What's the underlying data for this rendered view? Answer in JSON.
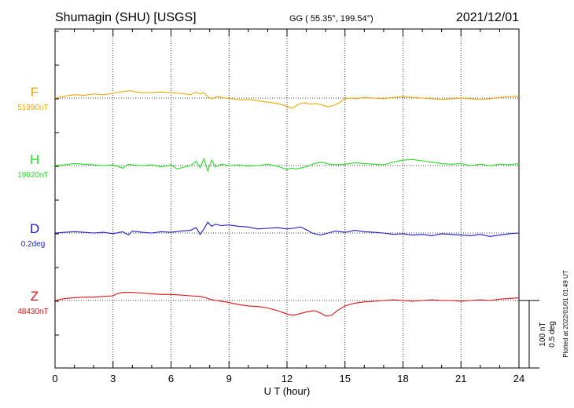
{
  "header": {
    "station": "Shumagin (SHU)  [USGS]",
    "coords": "GG ( 55.35°, 199.54°)",
    "date": "2021/12/01"
  },
  "side_note": "Plotted at 2022/01/01 01:49 UT",
  "scale": {
    "nt": "100 nT",
    "deg": "0.5 deg"
  },
  "chart_data": {
    "type": "line",
    "xlabel": "U T (hour)",
    "xlim": [
      0,
      24
    ],
    "xticks": [
      "0",
      "3",
      "6",
      "9",
      "12",
      "15",
      "18",
      "21",
      "24"
    ],
    "grid": true,
    "series": [
      {
        "name": "F",
        "baseline_label": "51990nT",
        "color": "#f0a800",
        "x": [
          0,
          0.5,
          1,
          1.5,
          2,
          2.5,
          3,
          3.3,
          3.6,
          3.9,
          4.2,
          4.5,
          5,
          5.5,
          6,
          6.5,
          7,
          7.3,
          7.5,
          7.7,
          7.9,
          8.1,
          8.4,
          8.8,
          9.2,
          9.6,
          10,
          10.5,
          11,
          11.5,
          12,
          12.2,
          12.4,
          12.6,
          12.9,
          13.2,
          13.5,
          13.8,
          14.1,
          14.4,
          14.7,
          15,
          15.3,
          15.6,
          16,
          16.5,
          17,
          17.5,
          18,
          18.5,
          19,
          19.5,
          20,
          20.5,
          21,
          21.5,
          22,
          22.5,
          23,
          23.5,
          24
        ],
        "y": [
          0,
          3,
          5,
          4,
          6,
          5,
          7,
          9,
          10,
          11,
          9,
          8,
          8,
          9,
          8,
          7,
          5,
          9,
          6,
          8,
          2,
          -1,
          2,
          0,
          -1,
          -3,
          -2,
          -4,
          -6,
          -8,
          -12,
          -15,
          -13,
          -9,
          -7,
          -9,
          -8,
          -10,
          -13,
          -11,
          -7,
          -1,
          0,
          -1,
          1,
          0,
          -1,
          1,
          2,
          1,
          0,
          -1,
          -2,
          -1,
          0,
          -1,
          -2,
          -1,
          1,
          2,
          3
        ]
      },
      {
        "name": "H",
        "baseline_label": "19920nT",
        "color": "#22e022",
        "x": [
          0,
          0.5,
          1,
          1.5,
          2,
          2.5,
          3,
          3.5,
          3.8,
          4,
          4.5,
          5,
          5.5,
          6,
          6.3,
          6.6,
          7,
          7.3,
          7.5,
          7.7,
          7.9,
          8.1,
          8.3,
          8.6,
          9,
          9.5,
          10,
          10.5,
          11,
          11.5,
          12,
          12.2,
          12.5,
          12.8,
          13.1,
          13.4,
          13.8,
          14.2,
          14.6,
          15,
          15.5,
          16,
          16.5,
          17,
          17.5,
          18,
          18.5,
          19,
          19.5,
          20,
          20.5,
          21,
          21.5,
          22,
          22.5,
          23,
          23.5,
          24
        ],
        "y": [
          0,
          1,
          3,
          2,
          1,
          0,
          1,
          -4,
          2,
          1,
          0,
          1,
          -2,
          1,
          -5,
          -3,
          0,
          6,
          -3,
          10,
          -8,
          8,
          -2,
          2,
          0,
          1,
          -1,
          0,
          2,
          -1,
          -6,
          -4,
          -5,
          -3,
          -1,
          3,
          5,
          2,
          1,
          2,
          4,
          3,
          2,
          1,
          5,
          8,
          9,
          7,
          5,
          3,
          2,
          3,
          0,
          2,
          0,
          2,
          1,
          3
        ]
      },
      {
        "name": "D",
        "baseline_label": "0.2deg",
        "color": "#1a1ad0",
        "x": [
          0,
          0.5,
          1,
          1.5,
          2,
          2.5,
          3,
          3.5,
          3.8,
          4,
          4.5,
          5,
          5.5,
          6,
          6.5,
          7,
          7.3,
          7.5,
          7.7,
          7.9,
          8.1,
          8.3,
          8.6,
          9,
          9.5,
          10,
          10.5,
          11,
          11.5,
          12,
          12.3,
          12.7,
          13,
          13.3,
          13.7,
          14,
          14.5,
          15,
          15.5,
          16,
          16.5,
          17,
          17.5,
          18,
          18.5,
          19,
          19.5,
          20,
          20.5,
          21,
          21.5,
          22,
          22.5,
          23,
          23.5,
          24
        ],
        "y": [
          0,
          1,
          2,
          1,
          0,
          1,
          -1,
          2,
          -3,
          3,
          1,
          0,
          2,
          1,
          3,
          4,
          8,
          -2,
          6,
          16,
          10,
          13,
          11,
          12,
          10,
          9,
          6,
          7,
          8,
          6,
          7,
          9,
          5,
          0,
          -3,
          -1,
          3,
          1,
          4,
          2,
          1,
          0,
          -2,
          -1,
          -3,
          -2,
          -4,
          -1,
          -2,
          -3,
          -4,
          -2,
          -5,
          -3,
          -1,
          0
        ]
      },
      {
        "name": "Z",
        "baseline_label": "48430nT",
        "color": "#e01010",
        "x": [
          0,
          0.5,
          1,
          1.5,
          2,
          2.5,
          3,
          3.2,
          3.5,
          4,
          4.5,
          5,
          5.5,
          6,
          6.5,
          7,
          7.5,
          7.8,
          8,
          8.3,
          8.6,
          9,
          9.5,
          10,
          10.5,
          11,
          11.5,
          12,
          12.3,
          12.6,
          13,
          13.4,
          13.7,
          14,
          14.3,
          14.6,
          15,
          15.5,
          16,
          16.5,
          17,
          17.5,
          18,
          18.5,
          19,
          19.5,
          20,
          20.5,
          21,
          21.5,
          22,
          22.5,
          23,
          23.5,
          24
        ],
        "y": [
          0,
          3,
          4,
          5,
          5,
          6,
          7,
          10,
          12,
          12,
          11,
          10,
          9,
          9,
          8,
          7,
          6,
          4,
          2,
          0,
          -1,
          -3,
          -6,
          -8,
          -9,
          -11,
          -15,
          -20,
          -22,
          -20,
          -17,
          -15,
          -18,
          -23,
          -22,
          -15,
          -8,
          -4,
          -2,
          -1,
          0,
          1,
          0,
          -1,
          0,
          1,
          0,
          0,
          -1,
          0,
          1,
          0,
          2,
          3,
          4
        ]
      }
    ]
  }
}
